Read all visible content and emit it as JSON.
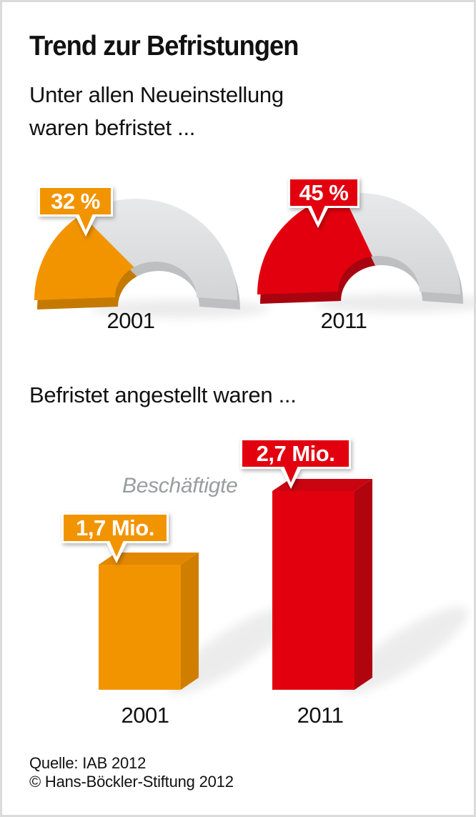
{
  "page": {
    "title": "Trend zur Befristungen",
    "subtitle_line1": "Unter allen Neueinstellung",
    "subtitle_line2": "waren befristet ...",
    "section2_heading": "Befristet angestellt waren ..."
  },
  "footer": {
    "source": "Quelle: IAB 2012",
    "copyright": "© Hans-Böckler-Stiftung 2012"
  },
  "colors": {
    "orange": "#F29400",
    "red": "#E2000F",
    "gray_arch": "#D9DADB",
    "text": "#111111",
    "muted_text": "#9A9C9E",
    "frame_border": "#DBDBDB"
  },
  "chart_data": [
    {
      "type": "gauge",
      "shape": "half-donut",
      "title": "Unter allen Neueinstellung waren befristet ...",
      "unit": "%",
      "max": 100,
      "categories": [
        "2001",
        "2011"
      ],
      "values": [
        32,
        45
      ],
      "labels": [
        "32 %",
        "45 %"
      ],
      "colors": [
        "#F29400",
        "#E2000F"
      ],
      "depth_colors": [
        "#C47900",
        "#A80410"
      ],
      "remainder_color_top": "#E7E8E9",
      "remainder_color_bottom": "#D2D4D5",
      "remainder_depth_color": "#BDBFC0",
      "legend_position": "none",
      "grid": false
    },
    {
      "type": "bar",
      "title": "Befristet angestellt waren ...",
      "ylabel": "Beschäftigte",
      "unit": "Mio. Beschäftigte",
      "categories": [
        "2001",
        "2011"
      ],
      "values": [
        1.7,
        2.7
      ],
      "labels": [
        "1,7 Mio.",
        "2,7 Mio."
      ],
      "colors": [
        "#F29400",
        "#E2000F"
      ],
      "top_colors": [
        "#E18800",
        "#C90511"
      ],
      "side_colors": [
        "#D07E00",
        "#B0040E"
      ],
      "legend_position": "none",
      "grid": false
    }
  ]
}
